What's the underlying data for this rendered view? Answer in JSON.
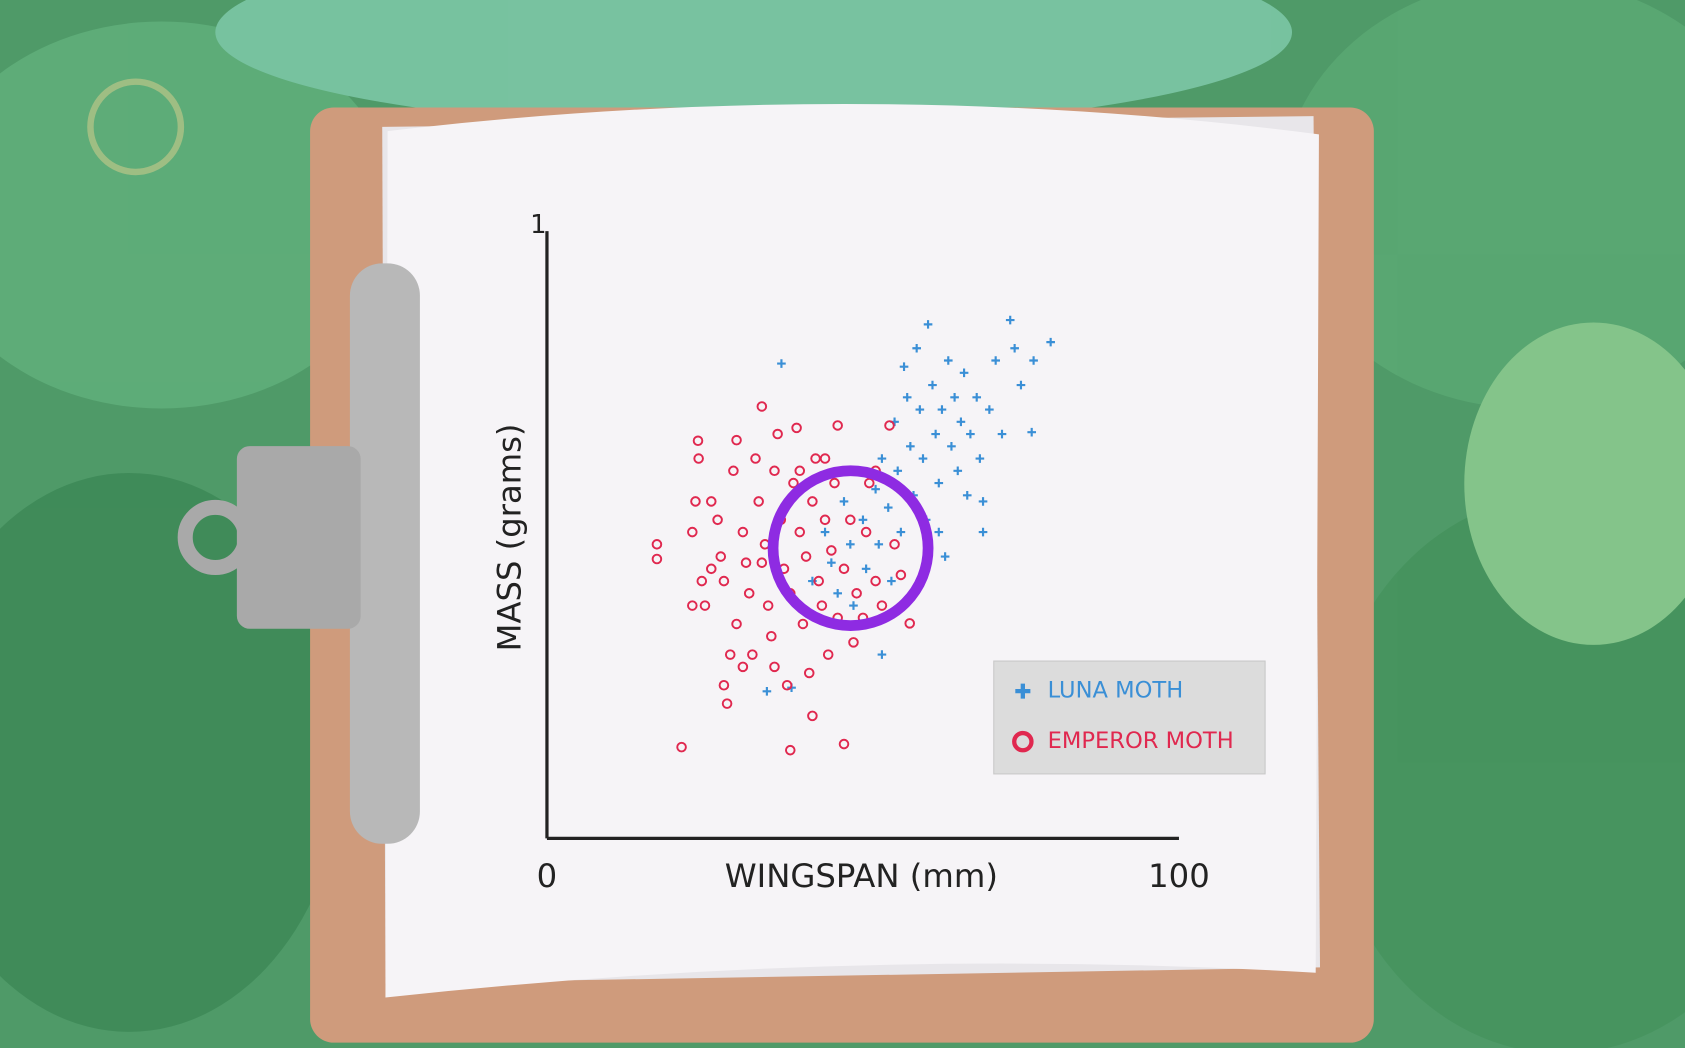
{
  "chart_data": {
    "type": "scatter",
    "xlabel": "WINGSPAN (mm)",
    "ylabel": "MASS (grams)",
    "xlim": [
      0,
      100
    ],
    "ylim": [
      0,
      1
    ],
    "xticks": [
      0,
      100
    ],
    "yticks": [
      1
    ],
    "legend": "lower right",
    "series": [
      {
        "name": "LUNA MOTH",
        "color": "#3a8fd6",
        "marker": "+",
        "x": [
          37.1,
          34.8,
          38.7,
          42,
          44,
          45,
          46,
          47,
          48,
          48.5,
          49,
          50,
          50.5,
          51,
          52,
          52.5,
          53,
          54,
          54.5,
          55,
          55.5,
          56,
          56.5,
          57,
          57.5,
          58,
          58.5,
          59,
          59.5,
          60.3,
          60,
          61,
          61.5,
          62,
          62.5,
          63,
          63.5,
          64,
          64.5,
          65,
          65.5,
          66,
          66.5,
          67,
          68,
          68.5,
          69,
          70,
          71,
          72,
          73.3,
          74,
          75,
          76.7,
          77,
          79.7,
          58,
          53,
          62,
          69
        ],
        "values": [
          0.775,
          0.24,
          0.246,
          0.42,
          0.5,
          0.45,
          0.4,
          0.55,
          0.48,
          0.38,
          0.6,
          0.52,
          0.44,
          0.35,
          0.57,
          0.48,
          0.62,
          0.54,
          0.42,
          0.68,
          0.6,
          0.5,
          0.77,
          0.72,
          0.64,
          0.56,
          0.8,
          0.7,
          0.62,
          0.839,
          0.52,
          0.74,
          0.66,
          0.58,
          0.7,
          0.46,
          0.78,
          0.64,
          0.72,
          0.6,
          0.68,
          0.76,
          0.56,
          0.66,
          0.72,
          0.62,
          0.55,
          0.7,
          0.78,
          0.66,
          0.846,
          0.8,
          0.74,
          0.663,
          0.78,
          0.81,
          0.4,
          0.3,
          0.5,
          0.5
        ]
      },
      {
        "name": "EMPEROR MOTH",
        "color": "#e0284f",
        "marker": "o",
        "x": [
          17.4,
          17.4,
          21.3,
          23.9,
          24,
          23.5,
          23,
          24.5,
          25,
          23,
          26,
          27,
          27.5,
          28,
          28.5,
          28,
          29,
          30,
          29.5,
          30,
          31,
          31.5,
          32,
          32.5,
          33,
          33.5,
          34,
          34.5,
          35,
          35.5,
          36,
          36,
          36.5,
          37,
          37.5,
          38,
          38.5,
          38.5,
          39,
          39.5,
          40,
          40.5,
          41,
          41.5,
          42,
          42,
          42.5,
          43,
          43.5,
          44,
          44.5,
          45,
          45.5,
          46,
          46,
          47,
          47,
          48,
          48.5,
          49,
          50,
          50.5,
          51,
          52,
          53,
          54.2,
          55,
          57.4,
          56,
          52,
          44,
          40,
          34,
          26,
          31
        ],
        "values": [
          0.456,
          0.48,
          0.149,
          0.649,
          0.62,
          0.55,
          0.5,
          0.42,
          0.38,
          0.38,
          0.55,
          0.52,
          0.46,
          0.42,
          0.22,
          0.25,
          0.3,
          0.35,
          0.6,
          0.65,
          0.5,
          0.45,
          0.4,
          0.3,
          0.62,
          0.55,
          0.705,
          0.48,
          0.38,
          0.33,
          0.28,
          0.6,
          0.66,
          0.52,
          0.44,
          0.25,
          0.144,
          0.4,
          0.58,
          0.67,
          0.5,
          0.35,
          0.46,
          0.27,
          0.2,
          0.55,
          0.62,
          0.42,
          0.38,
          0.52,
          0.3,
          0.47,
          0.58,
          0.674,
          0.36,
          0.154,
          0.44,
          0.52,
          0.32,
          0.4,
          0.36,
          0.5,
          0.58,
          0.42,
          0.38,
          0.674,
          0.48,
          0.351,
          0.43,
          0.6,
          0.62,
          0.6,
          0.45,
          0.44,
          0.28
        ]
      }
    ]
  }
}
